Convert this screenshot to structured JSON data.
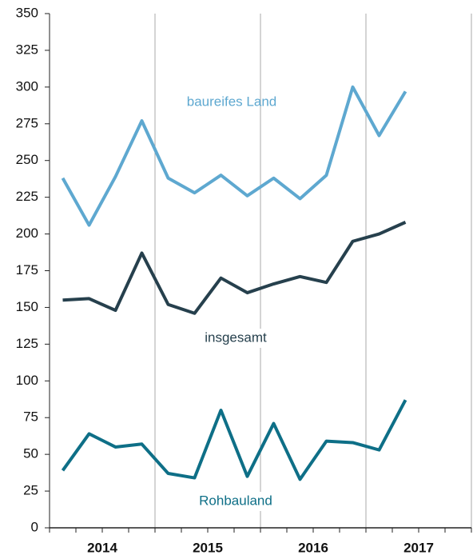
{
  "chart_data": {
    "type": "line",
    "categories": [
      null,
      null,
      null,
      null,
      null,
      null,
      null,
      null,
      null,
      null,
      null,
      null,
      null,
      null
    ],
    "year_labels": [
      "2014",
      "2015",
      "2016",
      "2017"
    ],
    "series": [
      {
        "name": "baureifes Land",
        "color": "#5ea8d0",
        "values": [
          238,
          206,
          239,
          277,
          238,
          228,
          240,
          226,
          238,
          224,
          240,
          300,
          267,
          297
        ]
      },
      {
        "name": "insgesamt",
        "color": "#26404d",
        "values": [
          155,
          156,
          148,
          187,
          152,
          146,
          170,
          160,
          166,
          171,
          167,
          195,
          200,
          208
        ]
      },
      {
        "name": "Rohbauland",
        "color": "#0e6f87",
        "values": [
          39,
          64,
          55,
          57,
          37,
          34,
          80,
          35,
          71,
          33,
          59,
          58,
          53,
          87
        ]
      }
    ],
    "ylim": [
      0,
      350
    ],
    "yticks": [
      0,
      25,
      50,
      75,
      100,
      125,
      150,
      175,
      200,
      225,
      250,
      275,
      300,
      325,
      350
    ]
  }
}
